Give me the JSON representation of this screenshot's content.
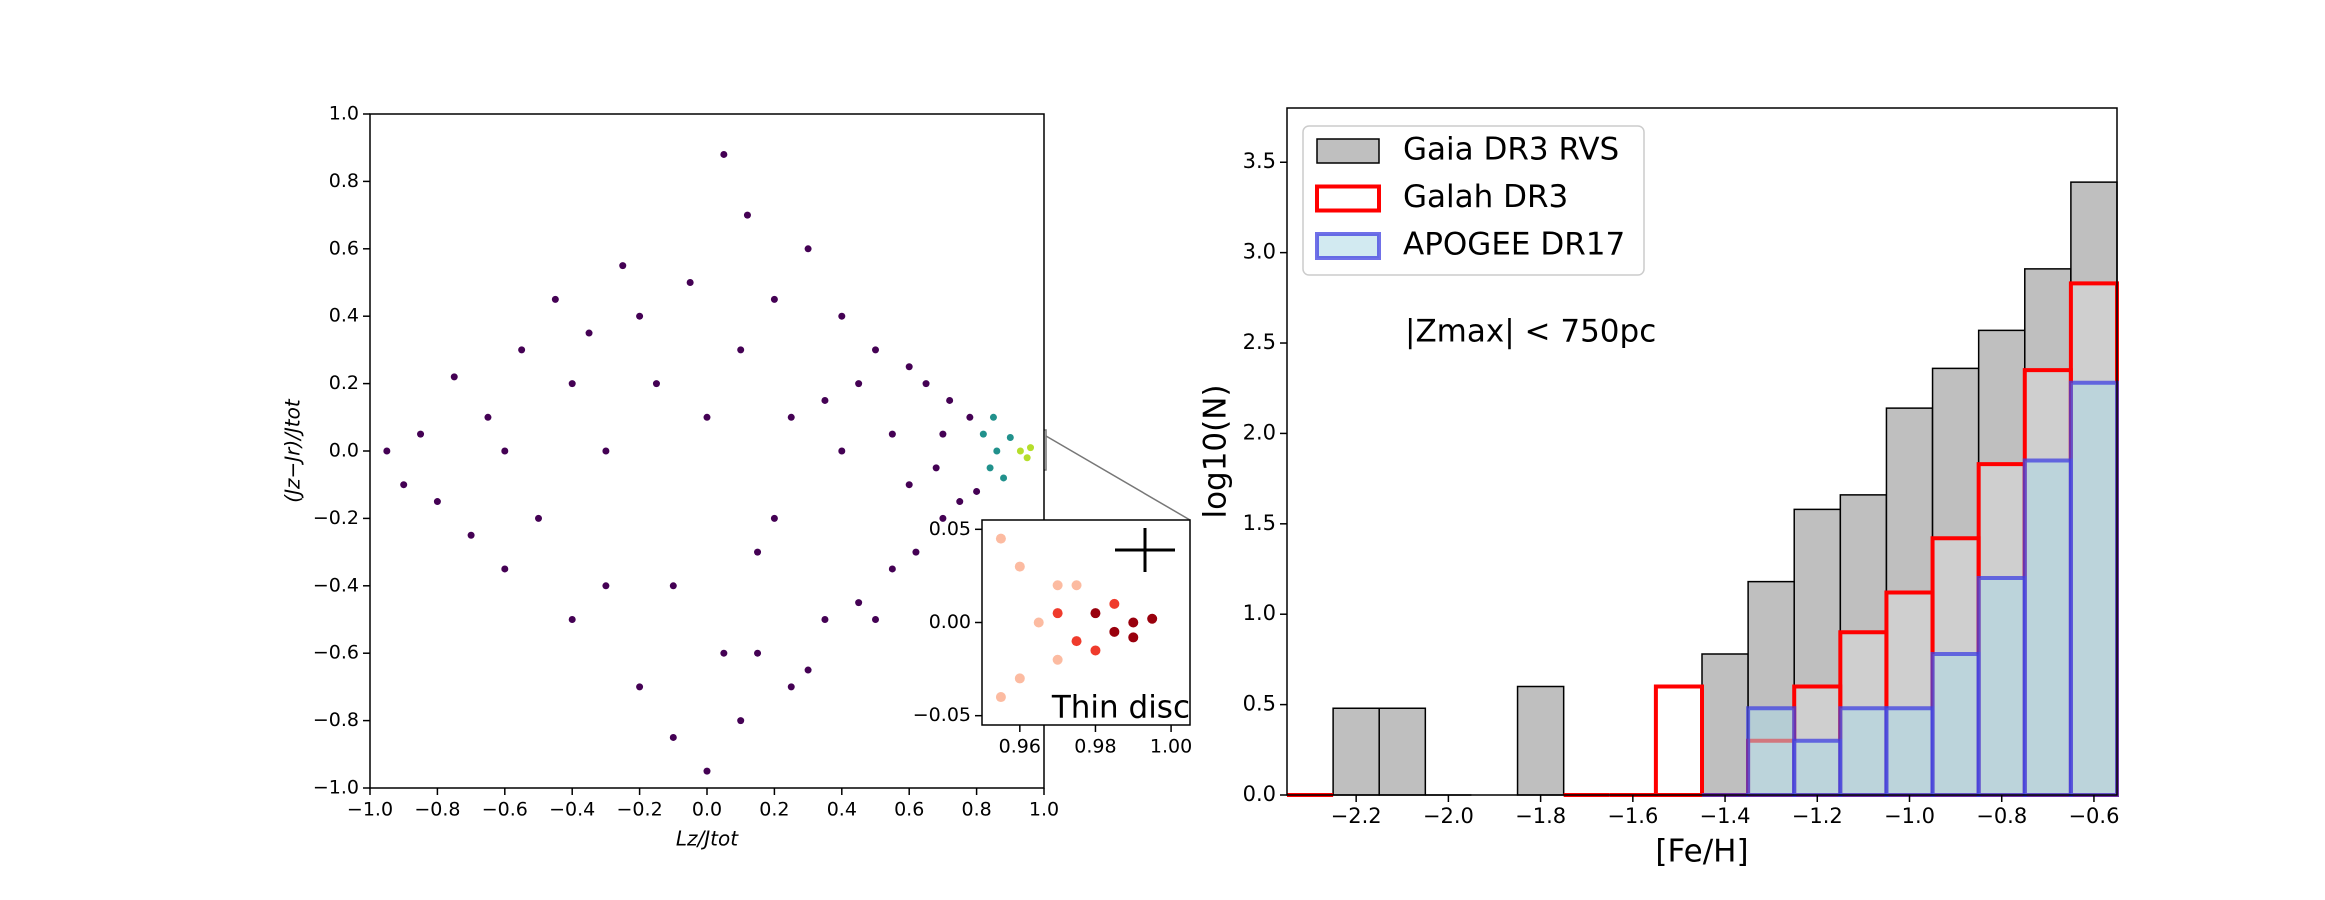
{
  "chart_data": [
    {
      "type": "scatter",
      "xlabel": "Lz/Jtot",
      "ylabel": "(Jz−Jr)/Jtot",
      "xlim": [
        -1,
        1
      ],
      "ylim": [
        -1,
        1
      ],
      "xticks": [
        {
          "value": -1.0,
          "label": "−1.0"
        },
        {
          "value": -0.8,
          "label": "−0.8"
        },
        {
          "value": -0.6,
          "label": "−0.6"
        },
        {
          "value": -0.4,
          "label": "−0.4"
        },
        {
          "value": -0.2,
          "label": "−0.2"
        },
        {
          "value": 0.0,
          "label": "0.0"
        },
        {
          "value": 0.2,
          "label": "0.2"
        },
        {
          "value": 0.4,
          "label": "0.4"
        },
        {
          "value": 0.6,
          "label": "0.6"
        },
        {
          "value": 0.8,
          "label": "0.8"
        },
        {
          "value": 1.0,
          "label": "1.0"
        }
      ],
      "yticks": [
        {
          "value": -1.0,
          "label": "−1.0"
        },
        {
          "value": -0.8,
          "label": "−0.8"
        },
        {
          "value": -0.6,
          "label": "−0.6"
        },
        {
          "value": -0.4,
          "label": "−0.4"
        },
        {
          "value": -0.2,
          "label": "−0.2"
        },
        {
          "value": 0.0,
          "label": "0.0"
        },
        {
          "value": 0.2,
          "label": "0.2"
        },
        {
          "value": 0.4,
          "label": "0.4"
        },
        {
          "value": 0.6,
          "label": "0.6"
        },
        {
          "value": 0.8,
          "label": "0.8"
        },
        {
          "value": 1.0,
          "label": "1.0"
        }
      ],
      "series": [
        {
          "color": "#440154",
          "x": [
            -0.95,
            -0.9,
            -0.85,
            -0.8,
            -0.75,
            -0.7,
            -0.65,
            -0.6,
            -0.55,
            -0.5,
            -0.45,
            -0.4,
            -0.35,
            -0.3,
            -0.25,
            -0.2,
            -0.15,
            -0.1,
            -0.05,
            0.0,
            0.05,
            0.1,
            0.12,
            0.15,
            0.2,
            0.25,
            0.3,
            0.35,
            0.4,
            0.45,
            0.5,
            0.55,
            0.6,
            0.62,
            0.65,
            0.7,
            0.72,
            0.75,
            0.78,
            0.8,
            -0.6,
            -0.3,
            0.0,
            0.2,
            0.4,
            0.1,
            -0.1,
            0.5,
            0.45,
            -0.2,
            0.15,
            0.35,
            0.6,
            0.25,
            0.55,
            -0.4,
            0.05,
            0.3,
            0.68,
            0.7
          ],
          "y": [
            0.0,
            -0.1,
            0.05,
            -0.15,
            0.22,
            -0.25,
            0.1,
            -0.35,
            0.3,
            -0.2,
            0.45,
            -0.5,
            0.35,
            -0.4,
            0.55,
            -0.7,
            0.2,
            -0.85,
            0.5,
            -0.95,
            0.88,
            -0.8,
            0.7,
            -0.6,
            0.45,
            -0.7,
            0.6,
            -0.5,
            0.4,
            -0.45,
            0.3,
            -0.35,
            0.25,
            -0.3,
            0.2,
            -0.2,
            0.15,
            -0.15,
            0.1,
            -0.12,
            0.0,
            0.0,
            0.1,
            -0.2,
            0.0,
            0.3,
            -0.4,
            -0.5,
            0.2,
            0.4,
            -0.3,
            0.15,
            -0.1,
            0.1,
            0.05,
            0.2,
            -0.6,
            -0.65,
            -0.05,
            0.05
          ]
        },
        {
          "color": "#21918c",
          "x": [
            0.82,
            0.84,
            0.86,
            0.85,
            0.88,
            0.9
          ],
          "y": [
            0.05,
            -0.05,
            0.0,
            0.1,
            -0.08,
            0.04
          ]
        },
        {
          "color": "#b5de2b",
          "x": [
            0.93,
            0.95,
            0.96
          ],
          "y": [
            0.0,
            -0.02,
            0.01
          ]
        }
      ]
    },
    {
      "type": "scatter",
      "annotation": "Thin disc",
      "xlim": [
        0.95,
        1.005
      ],
      "ylim": [
        -0.055,
        0.055
      ],
      "xticks": [
        {
          "value": 0.96,
          "label": "0.96"
        },
        {
          "value": 0.98,
          "label": "0.98"
        },
        {
          "value": 1.0,
          "label": "1.00"
        }
      ],
      "yticks": [
        {
          "value": -0.05,
          "label": "−0.05"
        },
        {
          "value": 0.0,
          "label": "0.00"
        },
        {
          "value": 0.05,
          "label": "0.05"
        }
      ],
      "series": [
        {
          "color": "#fcbba1",
          "x": [
            0.955,
            0.96,
            0.955,
            0.965,
            0.97,
            0.97,
            0.96,
            0.975
          ],
          "y": [
            0.045,
            0.03,
            -0.04,
            0.0,
            0.02,
            -0.02,
            -0.03,
            0.02
          ]
        },
        {
          "color": "#ef3b2c",
          "x": [
            0.975,
            0.98,
            0.97,
            0.985
          ],
          "y": [
            -0.01,
            -0.015,
            0.005,
            0.01
          ]
        },
        {
          "color": "#99000d",
          "x": [
            0.99,
            0.995,
            0.985,
            0.98,
            0.99
          ],
          "y": [
            0.0,
            0.002,
            -0.005,
            0.005,
            -0.008
          ]
        }
      ]
    },
    {
      "type": "histogram",
      "xlabel": "[Fe/H]",
      "ylabel": "log10(N)",
      "annotation": "|Zmax| < 750pc",
      "legend": "upper left",
      "xlim": [
        -2.35,
        -0.55
      ],
      "ylim": [
        0,
        3.8
      ],
      "xticks": [
        {
          "value": -2.2,
          "label": "−2.2"
        },
        {
          "value": -2.0,
          "label": "−2.0"
        },
        {
          "value": -1.8,
          "label": "−1.8"
        },
        {
          "value": -1.6,
          "label": "−1.6"
        },
        {
          "value": -1.4,
          "label": "−1.4"
        },
        {
          "value": -1.2,
          "label": "−1.2"
        },
        {
          "value": -1.0,
          "label": "−1.0"
        },
        {
          "value": -0.8,
          "label": "−0.8"
        },
        {
          "value": -0.6,
          "label": "−0.6"
        }
      ],
      "yticks": [
        {
          "value": 0.0,
          "label": "0.0"
        },
        {
          "value": 0.5,
          "label": "0.5"
        },
        {
          "value": 1.0,
          "label": "1.0"
        },
        {
          "value": 1.5,
          "label": "1.5"
        },
        {
          "value": 2.0,
          "label": "2.0"
        },
        {
          "value": 2.5,
          "label": "2.5"
        },
        {
          "value": 3.0,
          "label": "3.0"
        },
        {
          "value": 3.5,
          "label": "3.5"
        }
      ],
      "bins": [
        -2.35,
        -2.25,
        -2.15,
        -2.05,
        -1.95,
        -1.85,
        -1.75,
        -1.65,
        -1.55,
        -1.45,
        -1.35,
        -1.25,
        -1.15,
        -1.05,
        -0.95,
        -0.85,
        -0.75,
        -0.65,
        -0.55
      ],
      "series": [
        {
          "name": "Gaia DR3 RVS",
          "color": "#000000",
          "fill": "#bfbfbf",
          "alpha": 1,
          "values": [
            null,
            0.48,
            0.48,
            0,
            null,
            0.6,
            null,
            null,
            null,
            0.78,
            1.18,
            1.58,
            1.66,
            2.14,
            2.36,
            2.57,
            2.91,
            3.39
          ]
        },
        {
          "name": "Galah DR3",
          "color": "#ff0000",
          "fill": "#ffffff",
          "alpha": 0.25,
          "values": [
            0,
            null,
            null,
            null,
            null,
            null,
            0,
            0,
            0.6,
            0,
            0.3,
            0.6,
            0.9,
            1.12,
            1.42,
            1.83,
            2.35,
            2.83
          ]
        },
        {
          "name": "APOGEE DR17",
          "color": "#4040e0",
          "fill": "#add8e6",
          "alpha": 0.55,
          "values": [
            null,
            null,
            null,
            null,
            null,
            null,
            null,
            null,
            null,
            0,
            0.48,
            0.3,
            0.48,
            0.48,
            0.78,
            1.2,
            1.85,
            2.28
          ]
        }
      ]
    }
  ]
}
